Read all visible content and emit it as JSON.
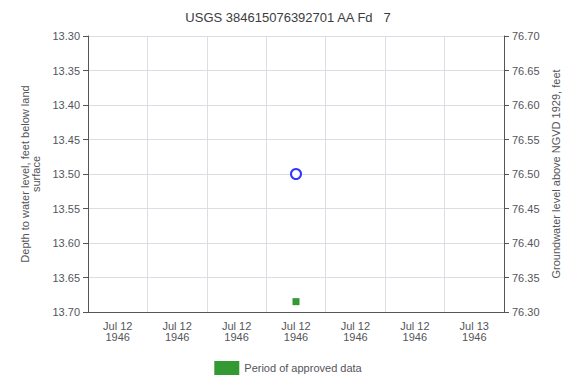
{
  "chart_data": {
    "type": "scatter",
    "title": "USGS 384615076392701 AA Fd   7",
    "ylabel": "Depth to water level, feet below land\nsurface",
    "y2label": "Groundwater level above NGVD 1929, feet",
    "categories": [
      "Jul 12\n1946",
      "Jul 12\n1946",
      "Jul 12\n1946",
      "Jul 12\n1946",
      "Jul 12\n1946",
      "Jul 12\n1946",
      "Jul 13\n1946"
    ],
    "ylim": [
      13.7,
      13.3
    ],
    "yticks": [
      {
        "value": 13.3,
        "label": "13.30"
      },
      {
        "value": 13.35,
        "label": "13.35"
      },
      {
        "value": 13.4,
        "label": "13.40"
      },
      {
        "value": 13.45,
        "label": "13.45"
      },
      {
        "value": 13.5,
        "label": "13.50"
      },
      {
        "value": 13.55,
        "label": "13.55"
      },
      {
        "value": 13.6,
        "label": "13.60"
      },
      {
        "value": 13.65,
        "label": "13.65"
      },
      {
        "value": 13.7,
        "label": "13.70"
      }
    ],
    "y2lim": [
      76.3,
      76.7
    ],
    "y2ticks": [
      {
        "value": 76.7,
        "label": "76.70"
      },
      {
        "value": 76.65,
        "label": "76.65"
      },
      {
        "value": 76.6,
        "label": "76.60"
      },
      {
        "value": 76.55,
        "label": "76.55"
      },
      {
        "value": 76.5,
        "label": "76.50"
      },
      {
        "value": 76.45,
        "label": "76.45"
      },
      {
        "value": 76.4,
        "label": "76.40"
      },
      {
        "value": 76.35,
        "label": "76.35"
      },
      {
        "value": 76.3,
        "label": "76.30"
      }
    ],
    "grid": true,
    "legend": "bottom",
    "series": [
      {
        "color": "blue",
        "marker": "circle",
        "values": [
          null,
          null,
          null,
          13.5,
          null,
          null,
          null
        ]
      },
      {
        "name": "Period of approved data",
        "color": "#008000",
        "marker": "square",
        "values": [
          null,
          null,
          null,
          13.685,
          null,
          null,
          null
        ]
      }
    ]
  }
}
